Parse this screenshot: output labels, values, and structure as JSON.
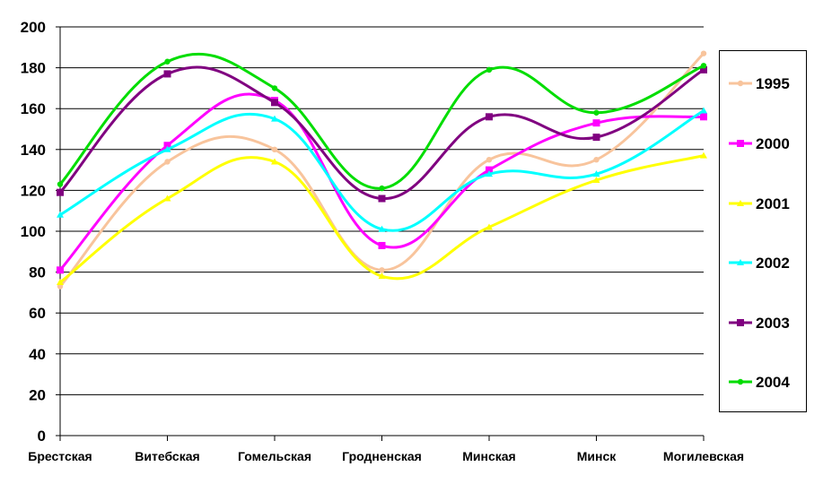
{
  "chart_data": {
    "type": "line",
    "smooth": true,
    "title": "",
    "xlabel": "",
    "ylabel": "",
    "ylim": [
      0,
      200
    ],
    "yticks": [
      0,
      20,
      40,
      60,
      80,
      100,
      120,
      140,
      160,
      180,
      200
    ],
    "grid": true,
    "legend_position": "right",
    "categories": [
      "Брестская",
      "Витебская",
      "Гомельская",
      "Гродненская",
      "Минская",
      "Минск",
      "Могилевская"
    ],
    "series": [
      {
        "name": "1995",
        "color": "#f8c49c",
        "marker": "circle",
        "values": [
          73,
          134,
          140,
          81,
          135,
          135,
          187
        ]
      },
      {
        "name": "2000",
        "color": "#ff00ff",
        "marker": "square",
        "values": [
          81,
          142,
          164,
          93,
          130,
          153,
          156
        ]
      },
      {
        "name": "2001",
        "color": "#ffff00",
        "marker": "triangle",
        "values": [
          75,
          116,
          134,
          78,
          102,
          125,
          137
        ]
      },
      {
        "name": "2002",
        "color": "#00ffff",
        "marker": "triangle",
        "values": [
          108,
          140,
          155,
          101,
          128,
          128,
          159
        ]
      },
      {
        "name": "2003",
        "color": "#800080",
        "marker": "square",
        "values": [
          119,
          177,
          163,
          116,
          156,
          146,
          179
        ]
      },
      {
        "name": "2004",
        "color": "#00dd00",
        "marker": "circle",
        "values": [
          123,
          183,
          170,
          121,
          179,
          158,
          181
        ]
      }
    ]
  }
}
